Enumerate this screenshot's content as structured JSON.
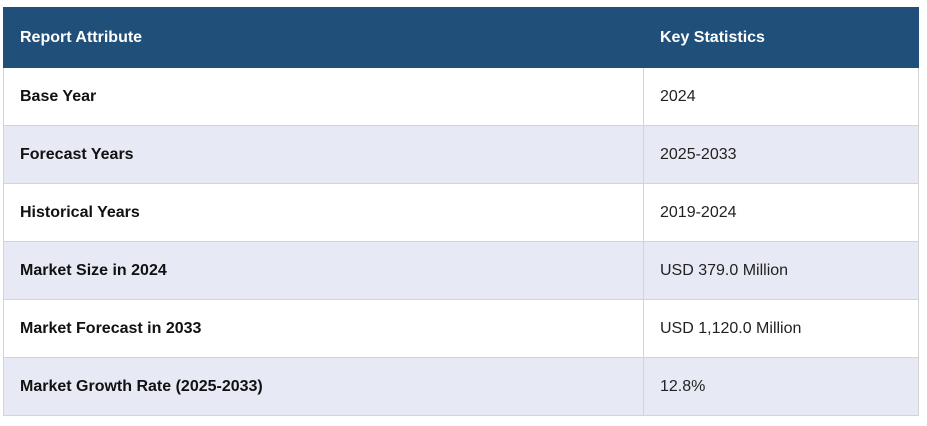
{
  "table": {
    "header": [
      "Report Attribute",
      "Key Statistics"
    ],
    "rows": [
      [
        "Base Year",
        "2024"
      ],
      [
        "Forecast Years",
        "2025-2033"
      ],
      [
        "Historical Years",
        "2019-2024"
      ],
      [
        "Market Size in 2024",
        "USD 379.0 Million"
      ],
      [
        "Market Forecast in 2033",
        "USD 1,120.0 Million"
      ],
      [
        "Market Growth Rate (2025-2033)",
        "12.8%"
      ]
    ]
  }
}
